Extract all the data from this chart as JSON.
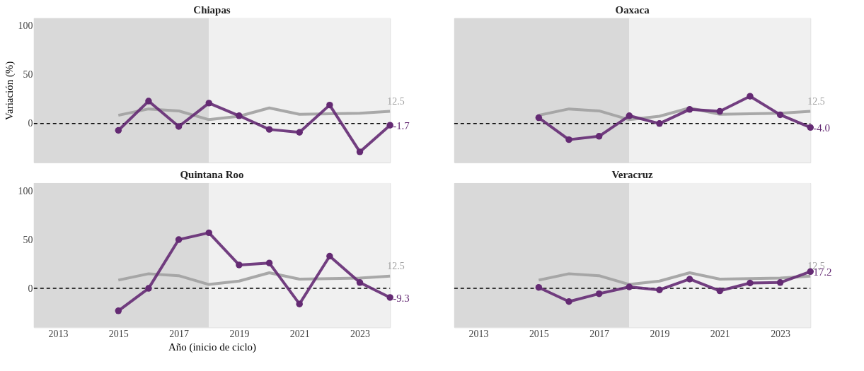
{
  "chart_data": [
    {
      "type": "line",
      "title": "Chiapas",
      "ylabel": "Variación (%)",
      "x": [
        2015,
        2016,
        2017,
        2018,
        2019,
        2020,
        2021,
        2022,
        2023,
        2024
      ],
      "xlim": [
        2012.2,
        2024
      ],
      "xticks": [
        2013,
        2015,
        2017,
        2019,
        2021,
        2023
      ],
      "ylim": [
        -40,
        108
      ],
      "yticks": [
        0,
        50,
        100
      ],
      "tick_labels": "y",
      "grid": false,
      "line_style": "solid",
      "series": [
        {
          "color": "#a0a0a0",
          "marker": "none",
          "values": [
            8.5,
            15,
            13,
            4,
            7.5,
            16,
            9.5,
            10,
            10.5,
            12.5
          ],
          "value_labels": [
            null,
            null,
            null,
            null,
            null,
            null,
            null,
            null,
            null,
            "12.5"
          ]
        },
        {
          "color": "#642a73",
          "marker": "circle",
          "values": [
            -7,
            23,
            -3,
            21,
            8,
            -6,
            -9,
            19,
            -29,
            -1.7
          ],
          "value_labels": [
            null,
            null,
            null,
            null,
            null,
            null,
            null,
            null,
            null,
            "-1.7"
          ]
        }
      ],
      "bands": [
        {
          "axis": "x",
          "from": 2012.2,
          "to": 2018,
          "color": "#d9d9d9"
        },
        {
          "axis": "x",
          "from": 2018,
          "to": 2024,
          "color": "#f0f0f0"
        }
      ],
      "ref_lines": [
        {
          "axis": "y",
          "value": 0,
          "color": "#000000",
          "line_style": "dashed"
        }
      ]
    },
    {
      "type": "line",
      "title": "Oaxaca",
      "x": [
        2015,
        2016,
        2017,
        2018,
        2019,
        2020,
        2021,
        2022,
        2023,
        2024
      ],
      "xlim": [
        2012.2,
        2024
      ],
      "xticks": [
        2013,
        2015,
        2017,
        2019,
        2021,
        2023
      ],
      "ylim": [
        -40,
        108
      ],
      "yticks": [
        0,
        50,
        100
      ],
      "tick_labels": false,
      "grid": false,
      "line_style": "solid",
      "series": [
        {
          "color": "#a0a0a0",
          "marker": "none",
          "values": [
            8.5,
            15,
            13,
            4,
            7.5,
            16,
            9.5,
            10,
            10.5,
            12.5
          ],
          "value_labels": [
            null,
            null,
            null,
            null,
            null,
            null,
            null,
            null,
            null,
            "12.5"
          ]
        },
        {
          "color": "#642a73",
          "marker": "circle",
          "values": [
            6,
            -16.5,
            -13,
            8,
            0,
            14.5,
            12.5,
            28,
            9,
            -4.0
          ],
          "value_labels": [
            null,
            null,
            null,
            null,
            null,
            null,
            null,
            null,
            null,
            "-4.0"
          ]
        }
      ],
      "bands": [
        {
          "axis": "x",
          "from": 2012.2,
          "to": 2018,
          "color": "#d9d9d9"
        },
        {
          "axis": "x",
          "from": 2018,
          "to": 2024,
          "color": "#f0f0f0"
        }
      ],
      "ref_lines": [
        {
          "axis": "y",
          "value": 0,
          "color": "#000000",
          "line_style": "dashed"
        }
      ]
    },
    {
      "type": "line",
      "title": "Quintana Roo",
      "xlabel": "Año (inicio de ciclo)",
      "x": [
        2015,
        2016,
        2017,
        2018,
        2019,
        2020,
        2021,
        2022,
        2023,
        2024
      ],
      "xlim": [
        2012.2,
        2024
      ],
      "xticks": [
        2013,
        2015,
        2017,
        2019,
        2021,
        2023
      ],
      "ylim": [
        -40,
        108
      ],
      "yticks": [
        0,
        50,
        100
      ],
      "grid": false,
      "line_style": "solid",
      "series": [
        {
          "color": "#a0a0a0",
          "marker": "none",
          "values": [
            8.5,
            15,
            13,
            4,
            7.5,
            16,
            9.5,
            10,
            10.5,
            12.5
          ],
          "value_labels": [
            null,
            null,
            null,
            null,
            null,
            null,
            null,
            null,
            null,
            "12.5"
          ]
        },
        {
          "color": "#642a73",
          "marker": "circle",
          "values": [
            -23,
            0,
            50,
            57,
            24,
            26,
            -16,
            33,
            6,
            -9.3
          ],
          "value_labels": [
            null,
            null,
            null,
            null,
            null,
            null,
            null,
            null,
            null,
            "-9.3"
          ]
        }
      ],
      "bands": [
        {
          "axis": "x",
          "from": 2012.2,
          "to": 2018,
          "color": "#d9d9d9"
        },
        {
          "axis": "x",
          "from": 2018,
          "to": 2024,
          "color": "#f0f0f0"
        }
      ],
      "ref_lines": [
        {
          "axis": "y",
          "value": 0,
          "color": "#000000",
          "line_style": "dashed"
        }
      ]
    },
    {
      "type": "line",
      "title": "Veracruz",
      "x": [
        2015,
        2016,
        2017,
        2018,
        2019,
        2020,
        2021,
        2022,
        2023,
        2024
      ],
      "xlim": [
        2012.2,
        2024
      ],
      "xticks": [
        2013,
        2015,
        2017,
        2019,
        2021,
        2023
      ],
      "ylim": [
        -40,
        108
      ],
      "yticks": [
        0,
        50,
        100
      ],
      "tick_labels": "x",
      "grid": false,
      "line_style": "solid",
      "series": [
        {
          "color": "#a0a0a0",
          "marker": "none",
          "values": [
            8.5,
            15,
            13,
            4,
            7.5,
            16,
            9.5,
            10,
            10.5,
            12.5
          ],
          "value_labels": [
            null,
            null,
            null,
            null,
            null,
            null,
            null,
            null,
            null,
            "12.5"
          ]
        },
        {
          "color": "#642a73",
          "marker": "circle",
          "values": [
            1,
            -13.5,
            -5.5,
            1.5,
            -1.5,
            9.5,
            -2.5,
            5.5,
            6,
            17.2
          ],
          "value_labels": [
            null,
            null,
            null,
            null,
            null,
            null,
            null,
            null,
            null,
            "17.2"
          ]
        }
      ],
      "bands": [
        {
          "axis": "x",
          "from": 2012.2,
          "to": 2018,
          "color": "#d9d9d9"
        },
        {
          "axis": "x",
          "from": 2018,
          "to": 2024,
          "color": "#f0f0f0"
        }
      ],
      "ref_lines": [
        {
          "axis": "y",
          "value": 0,
          "color": "#000000",
          "line_style": "dashed"
        }
      ]
    }
  ]
}
